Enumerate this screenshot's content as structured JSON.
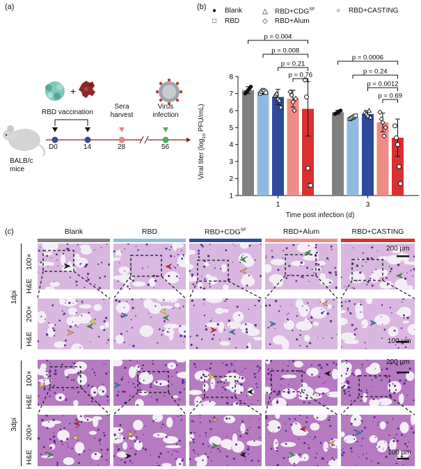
{
  "panel_labels": {
    "a": "(a)",
    "b": "(b)",
    "c": "(c)"
  },
  "scheme": {
    "vaccination": "RBD vaccination",
    "sera": "Sera\nharvest",
    "virus": "Virus\ninfection",
    "mouse": "BALB/c\nmice",
    "plus": "+",
    "timepoints": [
      "D0",
      "14",
      "28",
      "56"
    ],
    "colors": {
      "timeline": "#7a2020",
      "d0": "#3b4a8a",
      "d28": "#f08080",
      "d56": "#4caf50"
    }
  },
  "legend": {
    "items": [
      {
        "symbol": "●",
        "label": "Blank"
      },
      {
        "symbol": "△",
        "label": "RBD+CDG",
        "sup": "SF"
      },
      {
        "symbol": "○",
        "label": "RBD+CASTING"
      },
      {
        "symbol": "□",
        "label": "RBD"
      },
      {
        "symbol": "◇",
        "label": "RBD+Alum"
      }
    ]
  },
  "chart_data": {
    "type": "bar",
    "categories": [
      "1",
      "3"
    ],
    "xlabel": "Time post infection (d)",
    "ylabel": "Viral titer (log10 PFU/mL)",
    "ylabel_parts": {
      "pre": "Viral titer (log",
      "sub": "10",
      "post": " PFU/mL)"
    },
    "ylim": [
      1,
      8
    ],
    "yticks": [
      1,
      2,
      3,
      4,
      5,
      6,
      7,
      8
    ],
    "series": [
      {
        "name": "Blank",
        "color": "#808080",
        "marker": "circle-filled",
        "values": [
          7.2,
          5.9
        ],
        "err": [
          0.2,
          0.12
        ],
        "points": [
          [
            7.0,
            7.1,
            7.2,
            7.3,
            7.4
          ],
          [
            5.8,
            5.85,
            5.9,
            5.95,
            6.0
          ]
        ]
      },
      {
        "name": "RBD",
        "color": "#8fbbe0",
        "marker": "square-open",
        "values": [
          7.1,
          5.6
        ],
        "err": [
          0.15,
          0.1
        ],
        "points": [
          [
            7.0,
            7.1,
            7.2,
            7.15,
            7.05
          ],
          [
            5.5,
            5.55,
            5.6,
            5.65,
            5.7
          ]
        ]
      },
      {
        "name": "RBD+CDGSF",
        "color": "#2f4a9a",
        "marker": "triangle-open",
        "values": [
          6.8,
          5.8
        ],
        "err": [
          0.45,
          0.2
        ],
        "points": [
          [
            6.9,
            7.0,
            6.7,
            6.6,
            6.2
          ],
          [
            5.9,
            5.8,
            5.7,
            6.0,
            5.6
          ]
        ]
      },
      {
        "name": "RBD+Alum",
        "color": "#f08c86",
        "marker": "diamond-open",
        "values": [
          6.7,
          5.3
        ],
        "err": [
          0.5,
          0.55
        ],
        "points": [
          [
            7.1,
            6.9,
            6.5,
            6.0,
            6.7
          ],
          [
            5.9,
            5.5,
            5.3,
            4.5,
            5.0
          ]
        ]
      },
      {
        "name": "RBD+CASTING",
        "color": "#d93030",
        "marker": "circle-open",
        "values": [
          6.1,
          4.4
        ],
        "err": [
          1.6,
          1.1
        ],
        "points": [
          [
            7.8,
            6.8,
            2.6,
            1.6,
            1.6
          ],
          [
            5.1,
            4.4,
            4.0,
            2.7,
            1.7
          ]
        ]
      }
    ],
    "comparisons": [
      {
        "group": 0,
        "from": 0,
        "to": 4,
        "label": "p = 0.004"
      },
      {
        "group": 0,
        "from": 1,
        "to": 4,
        "label": "p = 0.008"
      },
      {
        "group": 0,
        "from": 2,
        "to": 4,
        "label": "p = 0.21"
      },
      {
        "group": 0,
        "from": 3,
        "to": 4,
        "label": "p = 0.76"
      },
      {
        "group": 1,
        "from": 0,
        "to": 4,
        "label": "p = 0.0006"
      },
      {
        "group": 1,
        "from": 1,
        "to": 4,
        "label": "p = 0.24"
      },
      {
        "group": 1,
        "from": 2,
        "to": 4,
        "label": "p = 0.0012"
      },
      {
        "group": 1,
        "from": 3,
        "to": 4,
        "label": "p = 0.69"
      }
    ]
  },
  "histology": {
    "columns": [
      {
        "label": "Blank",
        "color": "#808080"
      },
      {
        "label": "RBD",
        "color": "#8fbbe0"
      },
      {
        "label": "RBD+CDG",
        "sup": "SF",
        "color": "#2f4a9a"
      },
      {
        "label": "RBD+Alum",
        "color": "#f08c86"
      },
      {
        "label": "RBD+CASTING",
        "color": "#d93030"
      }
    ],
    "groups": [
      "1dpi",
      "3dpi"
    ],
    "stain": "H&E",
    "magnifications": [
      "100×",
      "200×"
    ],
    "scalebars": [
      "200 μm",
      "100 μm",
      "200 μm",
      "100 μm"
    ],
    "arrow_colors": {
      "black": "#111111",
      "red": "#e02020",
      "green": "#2e9e3a",
      "yellow": "#f2e33a",
      "orange": "#f5a25a",
      "blue": "#2f7fd0",
      "white": "#ffffff"
    }
  }
}
